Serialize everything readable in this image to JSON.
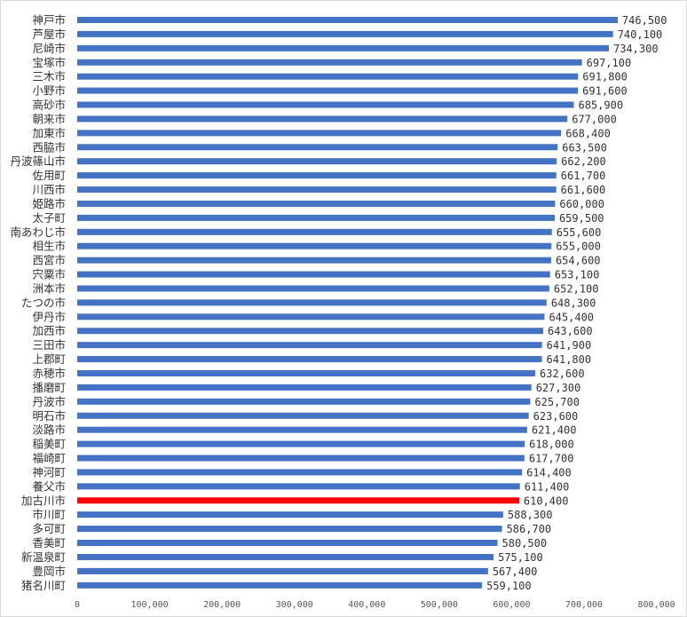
{
  "chart_data": {
    "type": "bar",
    "orientation": "horizontal",
    "title": "",
    "xlabel": "",
    "ylabel": "",
    "xlim": [
      0,
      800000
    ],
    "x_ticks": [
      "0",
      "100,000",
      "200,000",
      "300,000",
      "400,000",
      "500,000",
      "600,000",
      "700,000",
      "800,000"
    ],
    "grid": false,
    "colors": {
      "default": "#4472C4",
      "highlight": "#FF0000",
      "text": "#333333"
    },
    "highlight_category": "加古川市",
    "categories": [
      "神戸市",
      "芦屋市",
      "尼崎市",
      "宝塚市",
      "三木市",
      "小野市",
      "高砂市",
      "朝来市",
      "加東市",
      "西脇市",
      "丹波篠山市",
      "佐用町",
      "川西市",
      "姫路市",
      "太子町",
      "南あわじ市",
      "相生市",
      "西宮市",
      "宍粟市",
      "洲本市",
      "たつの市",
      "伊丹市",
      "加西市",
      "三田市",
      "上郡町",
      "赤穂市",
      "播磨町",
      "丹波市",
      "明石市",
      "淡路市",
      "稲美町",
      "福崎町",
      "神河町",
      "養父市",
      "加古川市",
      "市川町",
      "多可町",
      "香美町",
      "新温泉町",
      "豊岡市",
      "猪名川町"
    ],
    "values": [
      746500,
      740100,
      734300,
      697100,
      691800,
      691600,
      685900,
      677000,
      668400,
      663500,
      662200,
      661700,
      661600,
      660000,
      659500,
      655600,
      655000,
      654600,
      653100,
      652100,
      648300,
      645400,
      643600,
      641900,
      641800,
      632600,
      627300,
      625700,
      623600,
      621400,
      618000,
      617700,
      614400,
      611400,
      610400,
      588300,
      586700,
      580500,
      575100,
      567400,
      559100
    ],
    "value_labels": [
      "746,500",
      "740,100",
      "734,300",
      "697,100",
      "691,800",
      "691,600",
      "685,900",
      "677,000",
      "668,400",
      "663,500",
      "662,200",
      "661,700",
      "661,600",
      "660,000",
      "659,500",
      "655,600",
      "655,000",
      "654,600",
      "653,100",
      "652,100",
      "648,300",
      "645,400",
      "643,600",
      "641,900",
      "641,800",
      "632,600",
      "627,300",
      "625,700",
      "623,600",
      "621,400",
      "618,000",
      "617,700",
      "614,400",
      "611,400",
      "610,400",
      "588,300",
      "586,700",
      "580,500",
      "575,100",
      "567,400",
      "559,100"
    ]
  }
}
